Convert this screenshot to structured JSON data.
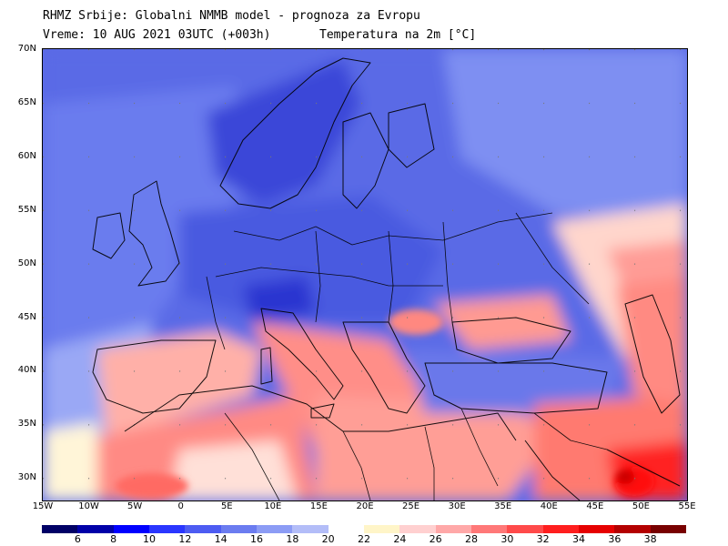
{
  "header": {
    "line1": "RHMZ Srbije: Globalni NMMB model - prognoza za Evropu",
    "line2": "Vreme: 10 AUG 2021 03UTC (+003h)",
    "field": "Temperatura na 2m [°C]"
  },
  "axes": {
    "lat_labels": [
      "70N",
      "65N",
      "60N",
      "55N",
      "50N",
      "45N",
      "40N",
      "35N",
      "30N"
    ],
    "lon_labels": [
      "15W",
      "10W",
      "5W",
      "0",
      "5E",
      "10E",
      "15E",
      "20E",
      "25E",
      "30E",
      "35E",
      "40E",
      "45E",
      "50E",
      "55E"
    ],
    "lon_range": [
      -15,
      55
    ],
    "lat_range": [
      28,
      70
    ]
  },
  "colorbar": {
    "labels": [
      "6",
      "8",
      "10",
      "12",
      "14",
      "16",
      "18",
      "20",
      "22",
      "24",
      "26",
      "28",
      "30",
      "32",
      "34",
      "36",
      "38"
    ],
    "colors": [
      "#000066",
      "#0000a8",
      "#0000ff",
      "#2a36ff",
      "#4d5cf2",
      "#6b7cf0",
      "#8c9cf5",
      "#b3bdf8",
      "#ffffff",
      "#fff5c8",
      "#ffd0d0",
      "#ffa8a8",
      "#ff7878",
      "#ff4a4a",
      "#ff1e1e",
      "#e60000",
      "#b40000",
      "#780000"
    ]
  }
}
